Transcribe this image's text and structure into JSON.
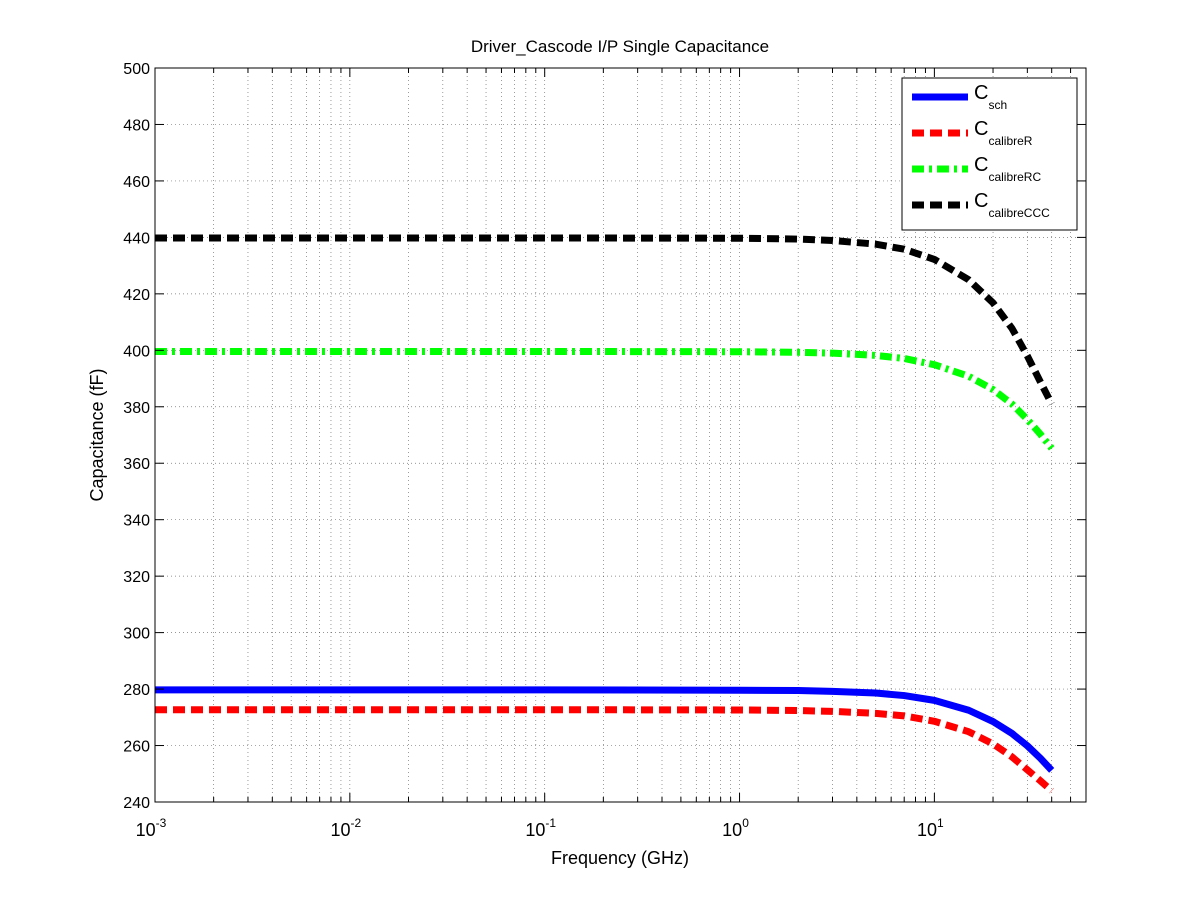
{
  "chart_data": {
    "type": "line",
    "title": "Driver_Cascode I/P Single Capacitance",
    "xlabel": "Frequency (GHz)",
    "ylabel": "Capacitance (fF)",
    "xscale": "log",
    "xlim": [
      0.001,
      60
    ],
    "ylim": [
      240,
      500
    ],
    "grid": true,
    "legend_position": "top-right",
    "x_ticks": [
      {
        "value": 0.001,
        "base": "10",
        "exp": "-3"
      },
      {
        "value": 0.01,
        "base": "10",
        "exp": "-2"
      },
      {
        "value": 0.1,
        "base": "10",
        "exp": "-1"
      },
      {
        "value": 1,
        "base": "10",
        "exp": "0"
      },
      {
        "value": 10,
        "base": "10",
        "exp": "1"
      }
    ],
    "y_ticks": [
      240,
      260,
      280,
      300,
      320,
      340,
      360,
      380,
      400,
      420,
      440,
      460,
      480,
      500
    ],
    "x": [
      0.001,
      0.1,
      1,
      2,
      3,
      5,
      7,
      10,
      15,
      20,
      25,
      30,
      35,
      40
    ],
    "series": [
      {
        "name": "C",
        "sub": "sch",
        "color": "#0000ff",
        "style": "solid",
        "values": [
          279.7,
          279.7,
          279.6,
          279.5,
          279.2,
          278.6,
          277.7,
          276.0,
          272.5,
          268.5,
          264.3,
          259.9,
          255.5,
          251.2
        ]
      },
      {
        "name": "C",
        "sub": "calibreR",
        "color": "#ff0000",
        "style": "dashed",
        "values": [
          272.7,
          272.7,
          272.6,
          272.4,
          272.1,
          271.4,
          270.5,
          268.6,
          264.9,
          260.6,
          256.0,
          251.4,
          247.5,
          244.0
        ]
      },
      {
        "name": "C",
        "sub": "calibreRC",
        "color": "#00ff00",
        "style": "dashdot",
        "values": [
          399.6,
          399.6,
          399.5,
          399.3,
          399.0,
          398.2,
          397.1,
          394.9,
          390.8,
          386.1,
          381.0,
          375.5,
          370.3,
          365.3
        ]
      },
      {
        "name": "C",
        "sub": "calibreCCC",
        "color": "#000000",
        "style": "dashed",
        "values": [
          439.8,
          439.8,
          439.7,
          439.4,
          438.9,
          437.6,
          435.8,
          432.2,
          425.0,
          416.8,
          407.8,
          398.0,
          388.8,
          381.0
        ]
      }
    ]
  }
}
